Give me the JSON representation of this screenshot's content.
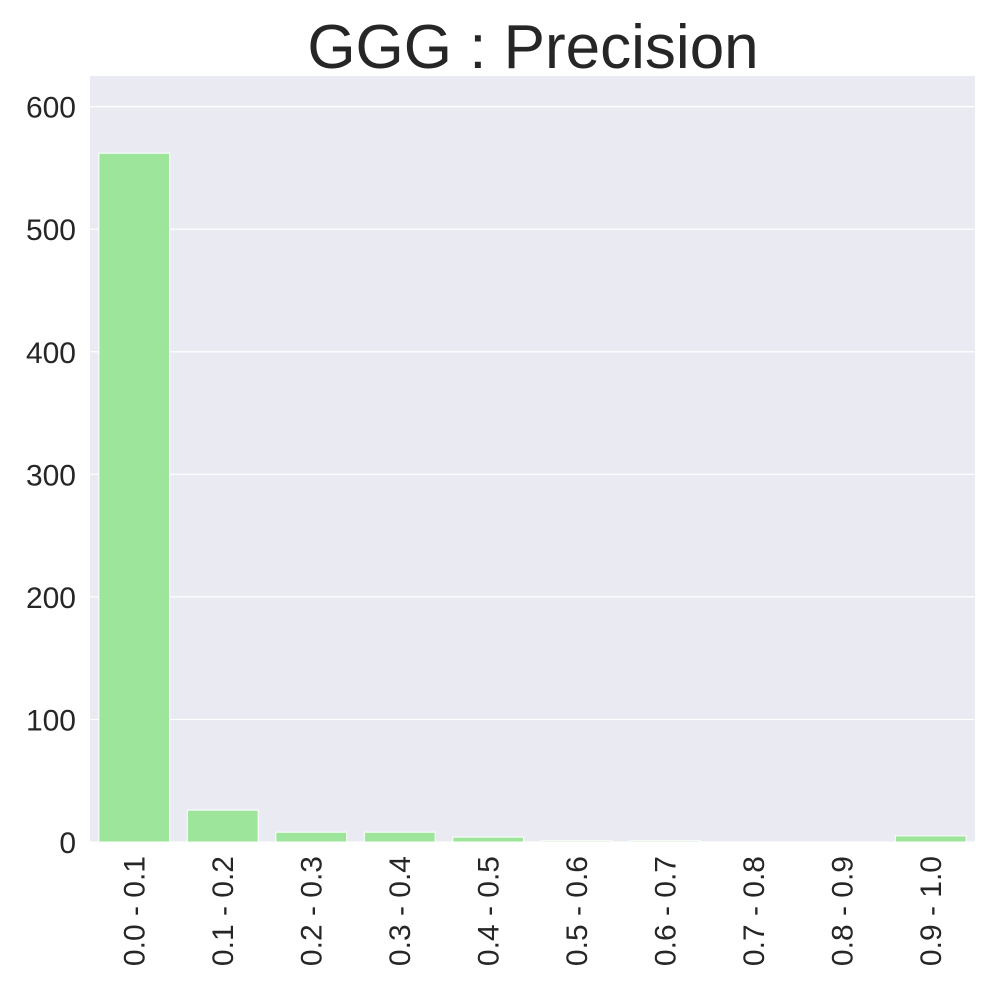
{
  "chart_data": {
    "type": "bar",
    "title": "GGG : Precision",
    "xlabel": "",
    "ylabel": "",
    "categories": [
      "0.0 - 0.1",
      "0.1 - 0.2",
      "0.2 - 0.3",
      "0.3 - 0.4",
      "0.4 - 0.5",
      "0.5 - 0.6",
      "0.6 - 0.7",
      "0.7 - 0.8",
      "0.8 - 0.9",
      "0.9 - 1.0"
    ],
    "values": [
      562,
      26,
      8,
      8,
      4,
      1,
      1,
      0,
      0,
      5
    ],
    "ylim": [
      0,
      625
    ],
    "yticks": [
      0,
      100,
      200,
      300,
      400,
      500,
      600
    ],
    "grid": true,
    "legend": "none",
    "colors": {
      "bar": "#9de59a",
      "background": "#eaeaf2",
      "grid": "#ffffff",
      "text": "#262626"
    }
  }
}
